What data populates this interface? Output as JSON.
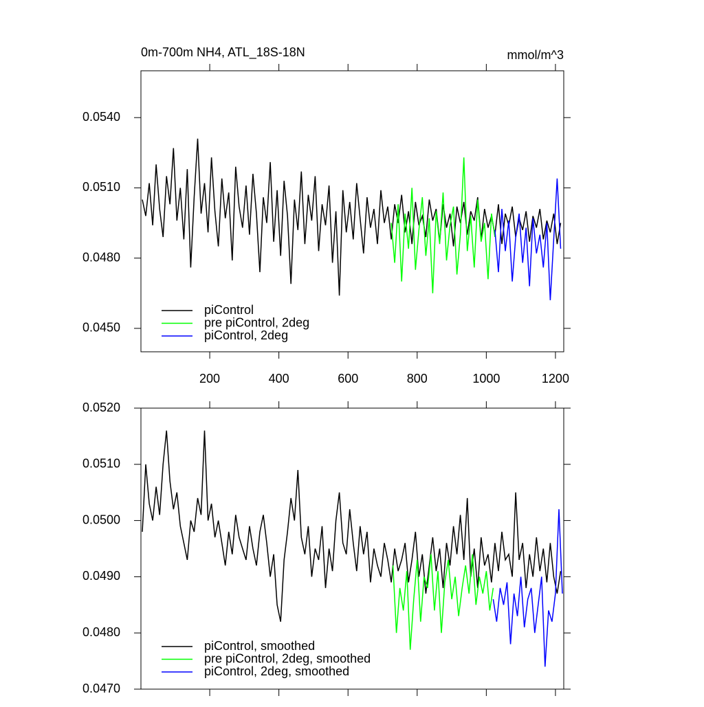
{
  "chart_data": [
    {
      "type": "line",
      "title": "0m-700m NH4, ATL_18S-18N",
      "units": "mmol/m^3",
      "xlim": [
        1,
        1224
      ],
      "xticks": [
        200,
        400,
        600,
        800,
        1000,
        1200
      ],
      "show_xtick_labels": true,
      "ylim": [
        0.044,
        0.056
      ],
      "yticks": [
        {
          "value": 0.045,
          "label": "0.0450"
        },
        {
          "value": 0.048,
          "label": "0.0480"
        },
        {
          "value": 0.051,
          "label": "0.0510"
        },
        {
          "value": 0.054,
          "label": "0.0540"
        }
      ],
      "legend": "lower left",
      "series": [
        {
          "name": "piControl",
          "color": "#000000",
          "x": [
            5,
            15,
            25,
            35,
            45,
            55,
            65,
            75,
            85,
            95,
            105,
            115,
            125,
            135,
            145,
            155,
            165,
            175,
            185,
            195,
            205,
            215,
            225,
            235,
            245,
            255,
            265,
            275,
            285,
            295,
            305,
            315,
            325,
            335,
            345,
            355,
            365,
            375,
            385,
            395,
            405,
            415,
            425,
            435,
            445,
            455,
            465,
            475,
            485,
            495,
            505,
            515,
            525,
            535,
            545,
            555,
            565,
            575,
            585,
            595,
            605,
            615,
            625,
            635,
            645,
            655,
            665,
            675,
            685,
            695,
            705,
            715,
            725,
            735,
            745,
            755,
            765,
            775,
            785,
            795,
            805,
            815,
            825,
            835,
            845,
            855,
            865,
            875,
            885,
            895,
            905,
            915,
            925,
            935,
            945,
            955,
            965,
            975,
            985,
            995,
            1005,
            1015,
            1025,
            1035,
            1045,
            1055,
            1065,
            1075,
            1085,
            1095,
            1105,
            1115,
            1125,
            1135,
            1145,
            1155,
            1165,
            1175,
            1185,
            1195,
            1205,
            1215
          ],
          "values": [
            0.0505,
            0.0498,
            0.0512,
            0.0494,
            0.052,
            0.0501,
            0.0489,
            0.0515,
            0.0503,
            0.0527,
            0.0496,
            0.051,
            0.0488,
            0.0518,
            0.0476,
            0.0506,
            0.0531,
            0.0499,
            0.0512,
            0.0491,
            0.0523,
            0.05,
            0.0485,
            0.0514,
            0.0497,
            0.0508,
            0.0479,
            0.0519,
            0.0502,
            0.0493,
            0.0511,
            0.049,
            0.0516,
            0.0499,
            0.0474,
            0.0506,
            0.0495,
            0.0521,
            0.0487,
            0.0509,
            0.0481,
            0.0513,
            0.0498,
            0.0469,
            0.0505,
            0.0492,
            0.0517,
            0.0486,
            0.0507,
            0.0496,
            0.0515,
            0.0483,
            0.0503,
            0.0494,
            0.0511,
            0.0478,
            0.05,
            0.0464,
            0.0509,
            0.0491,
            0.0504,
            0.0488,
            0.0512,
            0.0497,
            0.0482,
            0.0506,
            0.0493,
            0.0501,
            0.0486,
            0.0509,
            0.0495,
            0.0502,
            0.0488,
            0.0503,
            0.0495,
            0.0507,
            0.0491,
            0.05,
            0.0486,
            0.0504,
            0.0494,
            0.0498,
            0.0489,
            0.0505,
            0.0496,
            0.0501,
            0.0487,
            0.0503,
            0.0493,
            0.0499,
            0.0485,
            0.0502,
            0.0495,
            0.0504,
            0.049,
            0.05,
            0.0496,
            0.0506,
            0.0488,
            0.0501,
            0.0493,
            0.0498,
            0.049,
            0.0503,
            0.0486,
            0.0499,
            0.0494,
            0.0502,
            0.0489,
            0.0497,
            0.0492,
            0.05,
            0.0487,
            0.0498,
            0.0493,
            0.0501,
            0.0488,
            0.0496,
            0.0491,
            0.0499,
            0.0486,
            0.0495
          ]
        },
        {
          "name": "pre piControl, 2deg",
          "color": "#00ff00",
          "x": [
            725,
            735,
            745,
            755,
            765,
            775,
            785,
            795,
            805,
            815,
            825,
            835,
            845,
            855,
            865,
            875,
            885,
            895,
            905,
            915,
            925,
            935,
            945,
            955,
            965,
            975,
            985,
            995,
            1005,
            1015,
            1025
          ],
          "values": [
            0.0495,
            0.0478,
            0.0503,
            0.047,
            0.0499,
            0.0484,
            0.051,
            0.0475,
            0.0492,
            0.0506,
            0.0481,
            0.0497,
            0.0465,
            0.05,
            0.0486,
            0.0508,
            0.0479,
            0.0494,
            0.0502,
            0.0473,
            0.049,
            0.0523,
            0.0483,
            0.0498,
            0.0476,
            0.0505,
            0.0487,
            0.0495,
            0.0471,
            0.0499,
            0.0489
          ]
        },
        {
          "name": "piControl, 2deg",
          "color": "#0000ff",
          "x": [
            1025,
            1035,
            1045,
            1055,
            1065,
            1075,
            1085,
            1095,
            1105,
            1115,
            1125,
            1135,
            1145,
            1155,
            1165,
            1175,
            1185,
            1195,
            1205,
            1215
          ],
          "values": [
            0.0492,
            0.0474,
            0.0501,
            0.0483,
            0.0496,
            0.047,
            0.0489,
            0.0499,
            0.0478,
            0.0493,
            0.0468,
            0.0497,
            0.0482,
            0.049,
            0.0476,
            0.0495,
            0.0462,
            0.0488,
            0.0514,
            0.0484
          ]
        }
      ]
    },
    {
      "type": "line",
      "xlim": [
        1,
        1224
      ],
      "xticks": [
        200,
        400,
        600,
        800,
        1000,
        1200
      ],
      "show_xtick_labels": false,
      "ylim": [
        0.047,
        0.052
      ],
      "yticks": [
        {
          "value": 0.047,
          "label": "0.0470"
        },
        {
          "value": 0.048,
          "label": "0.0480"
        },
        {
          "value": 0.049,
          "label": "0.0490"
        },
        {
          "value": 0.05,
          "label": "0.0500"
        },
        {
          "value": 0.051,
          "label": "0.0510"
        },
        {
          "value": 0.052,
          "label": "0.0520"
        }
      ],
      "legend": "lower left",
      "series": [
        {
          "name": "piControl, smoothed",
          "color": "#000000",
          "x": [
            5,
            15,
            25,
            35,
            45,
            55,
            65,
            75,
            85,
            95,
            105,
            115,
            125,
            135,
            145,
            155,
            165,
            175,
            185,
            195,
            205,
            215,
            225,
            235,
            245,
            255,
            265,
            275,
            285,
            295,
            305,
            315,
            325,
            335,
            345,
            355,
            365,
            375,
            385,
            395,
            405,
            415,
            425,
            435,
            445,
            455,
            465,
            475,
            485,
            495,
            505,
            515,
            525,
            535,
            545,
            555,
            565,
            575,
            585,
            595,
            605,
            615,
            625,
            635,
            645,
            655,
            665,
            675,
            685,
            695,
            705,
            715,
            725,
            735,
            745,
            755,
            765,
            775,
            785,
            795,
            805,
            815,
            825,
            835,
            845,
            855,
            865,
            875,
            885,
            895,
            905,
            915,
            925,
            935,
            945,
            955,
            965,
            975,
            985,
            995,
            1005,
            1015,
            1025,
            1035,
            1045,
            1055,
            1065,
            1075,
            1085,
            1095,
            1105,
            1115,
            1125,
            1135,
            1145,
            1155,
            1165,
            1175,
            1185,
            1195,
            1205,
            1215
          ],
          "values": [
            0.0498,
            0.051,
            0.0503,
            0.05,
            0.0506,
            0.0501,
            0.051,
            0.0516,
            0.0507,
            0.0502,
            0.0505,
            0.0499,
            0.0496,
            0.0493,
            0.05,
            0.0498,
            0.0504,
            0.0501,
            0.0516,
            0.05,
            0.0503,
            0.0497,
            0.05,
            0.0496,
            0.0492,
            0.0498,
            0.0494,
            0.0501,
            0.0497,
            0.0495,
            0.0493,
            0.0499,
            0.0495,
            0.0492,
            0.0498,
            0.0501,
            0.0496,
            0.049,
            0.0494,
            0.0485,
            0.0482,
            0.0493,
            0.0498,
            0.0504,
            0.05,
            0.0509,
            0.0497,
            0.0494,
            0.0499,
            0.049,
            0.0495,
            0.0493,
            0.0499,
            0.0488,
            0.0495,
            0.0491,
            0.05,
            0.0505,
            0.0496,
            0.0494,
            0.0502,
            0.0496,
            0.0491,
            0.0499,
            0.0494,
            0.0498,
            0.0489,
            0.0495,
            0.0492,
            0.049,
            0.0496,
            0.0493,
            0.0489,
            0.0495,
            0.0491,
            0.0493,
            0.0496,
            0.0489,
            0.0493,
            0.0498,
            0.049,
            0.0494,
            0.0487,
            0.0492,
            0.0497,
            0.0491,
            0.0495,
            0.0488,
            0.0496,
            0.0492,
            0.0499,
            0.0494,
            0.0501,
            0.0493,
            0.0504,
            0.049,
            0.0495,
            0.0488,
            0.0497,
            0.0492,
            0.0494,
            0.0489,
            0.0496,
            0.0491,
            0.0498,
            0.0493,
            0.0494,
            0.049,
            0.0505,
            0.0493,
            0.0496,
            0.0488,
            0.0494,
            0.049,
            0.0497,
            0.0491,
            0.0495,
            0.0489,
            0.0496,
            0.049,
            0.0487,
            0.0491
          ]
        },
        {
          "name": "pre piControl, 2deg, smoothed",
          "color": "#00ff00",
          "x": [
            730,
            740,
            750,
            760,
            770,
            780,
            790,
            800,
            810,
            820,
            830,
            840,
            850,
            860,
            870,
            880,
            890,
            900,
            910,
            920,
            930,
            940,
            950,
            960,
            970,
            980,
            990,
            1000,
            1010,
            1020
          ],
          "values": [
            0.0492,
            0.048,
            0.0488,
            0.0484,
            0.0491,
            0.0477,
            0.0486,
            0.0493,
            0.0482,
            0.049,
            0.0488,
            0.0494,
            0.0484,
            0.0491,
            0.048,
            0.0489,
            0.0493,
            0.0486,
            0.049,
            0.0483,
            0.0488,
            0.0492,
            0.0487,
            0.0494,
            0.0485,
            0.049,
            0.0487,
            0.0491,
            0.0484,
            0.0488
          ]
        },
        {
          "name": "piControl, 2deg, smoothed",
          "color": "#0000ff",
          "x": [
            1020,
            1030,
            1040,
            1050,
            1060,
            1070,
            1080,
            1090,
            1100,
            1110,
            1120,
            1130,
            1140,
            1150,
            1160,
            1170,
            1180,
            1190,
            1200,
            1210,
            1220
          ],
          "values": [
            0.0486,
            0.0482,
            0.0488,
            0.0485,
            0.0489,
            0.0478,
            0.0487,
            0.0483,
            0.049,
            0.0481,
            0.0486,
            0.0488,
            0.048,
            0.0485,
            0.049,
            0.0474,
            0.0484,
            0.0482,
            0.0487,
            0.0502,
            0.0487
          ]
        }
      ]
    }
  ]
}
